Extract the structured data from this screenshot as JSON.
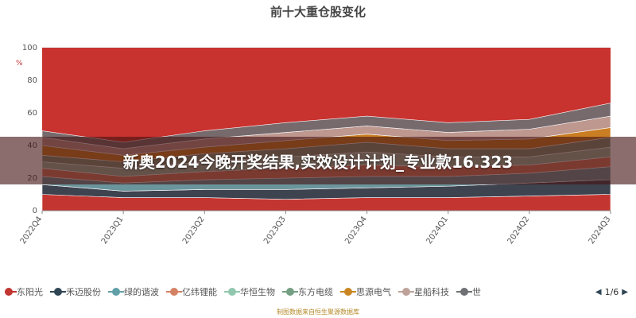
{
  "chart_data": {
    "type": "area",
    "title": "前十大重仓股变化",
    "ylabel": "%",
    "ylim": [
      0,
      100
    ],
    "yticks": [
      0,
      20,
      40,
      60,
      80,
      100
    ],
    "categories": [
      "2022Q4",
      "2023Q1",
      "2023Q2",
      "2023Q3",
      "2023Q4",
      "2024Q1",
      "2024Q2",
      "2024Q3"
    ],
    "stacked": true,
    "grid": true,
    "legend_position": "bottom",
    "series": [
      {
        "name": "东阳光",
        "color": "#c23531",
        "values": [
          10,
          8,
          8,
          7,
          8,
          8,
          9,
          10
        ]
      },
      {
        "name": "禾迈股份",
        "color": "#2f4554",
        "values": [
          6,
          4,
          5,
          6,
          6,
          7,
          8,
          9
        ]
      },
      {
        "name": "绿的谐波",
        "color": "#61a0a8",
        "values": [
          5,
          5,
          6,
          7,
          7,
          6,
          6,
          8
        ]
      },
      {
        "name": "亿纬锂能",
        "color": "#d48265",
        "values": [
          5,
          4,
          5,
          6,
          7,
          6,
          5,
          6
        ]
      },
      {
        "name": "华恒生物",
        "color": "#91c7ae",
        "values": [
          4,
          5,
          6,
          7,
          8,
          6,
          5,
          6
        ]
      },
      {
        "name": "东方电缆",
        "color": "#749f83",
        "values": [
          4,
          4,
          5,
          5,
          6,
          5,
          5,
          6
        ]
      },
      {
        "name": "思源电气",
        "color": "#ca8622",
        "values": [
          6,
          4,
          4,
          5,
          5,
          5,
          6,
          6
        ]
      },
      {
        "name": "星船科技",
        "color": "#bda29a",
        "values": [
          5,
          4,
          5,
          5,
          5,
          5,
          6,
          7
        ]
      },
      {
        "name": "世",
        "color": "#6e7074",
        "values": [
          4,
          4,
          5,
          6,
          6,
          6,
          6,
          8
        ]
      }
    ]
  },
  "legend": {
    "page": "1/6"
  },
  "overlay": {
    "text": "新奥2024今晚开奖结果,实效设计计划_专业款16.323"
  },
  "source": {
    "text": "制图数据来自恒生聚源数据库"
  }
}
